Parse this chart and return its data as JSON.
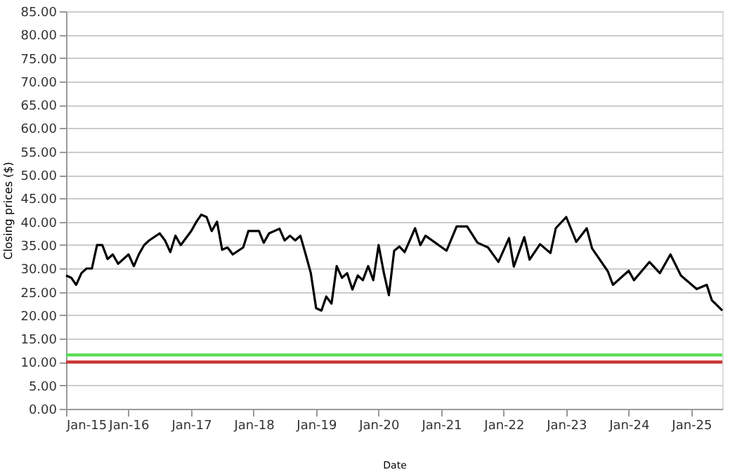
{
  "chart_data": {
    "type": "line",
    "xlabel": "Date",
    "ylabel": "Closing prices ($)",
    "xlim": [
      "2015-01",
      "2025-07"
    ],
    "xticks": [
      {
        "value": "2015-01",
        "label": "Jan-15"
      },
      {
        "value": "2016-01",
        "label": "Jan-16"
      },
      {
        "value": "2017-01",
        "label": "Jan-17"
      },
      {
        "value": "2018-01",
        "label": "Jan-18"
      },
      {
        "value": "2019-01",
        "label": "Jan-19"
      },
      {
        "value": "2020-01",
        "label": "Jan-20"
      },
      {
        "value": "2021-01",
        "label": "Jan-21"
      },
      {
        "value": "2022-01",
        "label": "Jan-22"
      },
      {
        "value": "2023-01",
        "label": "Jan-23"
      },
      {
        "value": "2024-01",
        "label": "Jan-24"
      },
      {
        "value": "2025-01",
        "label": "Jan-25"
      }
    ],
    "ylim": [
      0,
      85
    ],
    "yticks": [
      {
        "value": 0,
        "label": "0.00"
      },
      {
        "value": 5,
        "label": "5.00"
      },
      {
        "value": 10,
        "label": "10.00"
      },
      {
        "value": 15,
        "label": "15.00"
      },
      {
        "value": 20,
        "label": "20.00"
      },
      {
        "value": 25,
        "label": "25.00"
      },
      {
        "value": 30,
        "label": "30.00"
      },
      {
        "value": 35,
        "label": "35.00"
      },
      {
        "value": 40,
        "label": "40.00"
      },
      {
        "value": 45,
        "label": "45.00"
      },
      {
        "value": 50,
        "label": "50.00"
      },
      {
        "value": 55,
        "label": "55.00"
      },
      {
        "value": 60,
        "label": "60.00"
      },
      {
        "value": 65,
        "label": "65.00"
      },
      {
        "value": 70,
        "label": "70.00"
      },
      {
        "value": 75,
        "label": "75.00"
      },
      {
        "value": 80,
        "label": "80.00"
      },
      {
        "value": 85,
        "label": "85.00"
      }
    ],
    "grid": "y",
    "marker": "none",
    "line_style": "solid",
    "x": [
      "2015-01",
      "2015-02",
      "2015-03",
      "2015-04",
      "2015-05",
      "2015-06",
      "2015-07",
      "2015-08",
      "2015-09",
      "2015-10",
      "2015-11",
      "2016-01",
      "2016-02",
      "2016-03",
      "2016-04",
      "2016-05",
      "2016-07",
      "2016-08",
      "2016-09",
      "2016-10",
      "2016-11",
      "2017-01",
      "2017-02",
      "2017-03",
      "2017-04",
      "2017-05",
      "2017-06",
      "2017-07",
      "2017-08",
      "2017-09",
      "2017-11",
      "2017-12",
      "2018-02",
      "2018-03",
      "2018-04",
      "2018-06",
      "2018-07",
      "2018-08",
      "2018-09",
      "2018-10",
      "2018-11",
      "2018-12",
      "2019-01",
      "2019-02",
      "2019-03",
      "2019-04",
      "2019-05",
      "2019-06",
      "2019-07",
      "2019-08",
      "2019-09",
      "2019-10",
      "2019-11",
      "2019-12",
      "2020-01",
      "2020-02",
      "2020-03",
      "2020-04",
      "2020-05",
      "2020-06",
      "2020-07",
      "2020-08",
      "2020-09",
      "2020-10",
      "2021-02",
      "2021-04",
      "2021-06",
      "2021-08",
      "2021-10",
      "2021-12",
      "2022-02",
      "2022-03",
      "2022-05",
      "2022-06",
      "2022-08",
      "2022-10",
      "2022-11",
      "2023-01",
      "2023-03",
      "2023-05",
      "2023-06",
      "2023-09",
      "2023-10",
      "2023-12",
      "2024-01",
      "2024-02",
      "2024-05",
      "2024-07",
      "2024-09",
      "2024-11",
      "2025-02",
      "2025-04",
      "2025-05",
      "2025-07"
    ],
    "series": [
      {
        "color": "#000000",
        "values": [
          28.5,
          28,
          26.5,
          29,
          30,
          30,
          35,
          35,
          32,
          33,
          31,
          33,
          30.5,
          33,
          35,
          36,
          37.5,
          36,
          33.5,
          37,
          35,
          38,
          40,
          41.5,
          41,
          38,
          40,
          34,
          34.5,
          33,
          34.5,
          38,
          38,
          35.5,
          37.5,
          38.5,
          36,
          37,
          36,
          37,
          33,
          29,
          21.5,
          21,
          24,
          22.5,
          30.5,
          28,
          29,
          25.5,
          28.5,
          27.5,
          30.5,
          27.5,
          35,
          29,
          24.3,
          33.8,
          34.7,
          33.5,
          36,
          38.6,
          35,
          37,
          33.8,
          39,
          39,
          35.5,
          34.5,
          31.4,
          36.5,
          30.4,
          36.7,
          31.9,
          35.2,
          33.3,
          38.6,
          41,
          35.7,
          38.6,
          34.3,
          29.4,
          26.5,
          28.5,
          29.5,
          27.5,
          31.4,
          29,
          33,
          28.5,
          25.6,
          26.5,
          23.2,
          21
        ]
      }
    ],
    "ref_lines": [
      {
        "axis": "y",
        "value": 11.5,
        "color": "#55dd55",
        "line_style": "solid"
      },
      {
        "axis": "y",
        "value": 10,
        "color": "#cc3333",
        "line_style": "solid"
      }
    ]
  }
}
